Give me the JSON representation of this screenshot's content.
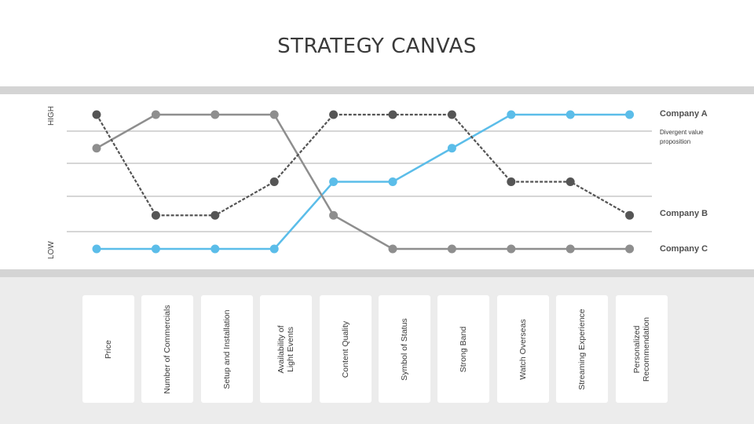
{
  "title": "STRATEGY CANVAS",
  "axis": {
    "high_label": "HIGH",
    "low_label": "LOW"
  },
  "chart_data": {
    "type": "line",
    "title": "STRATEGY CANVAS",
    "categories": [
      "Price",
      "Number of Commercials",
      "Setup and Installation",
      "Availability of\nLight Events",
      "Content Quality",
      "Symbol of Status",
      "Strong Band",
      "Watch Overseas",
      "Streaming Experience",
      "Personalized\nRecommendation"
    ],
    "ylim": [
      0,
      4
    ],
    "y_labels": {
      "high": "HIGH",
      "low": "LOW"
    },
    "grid": true,
    "series": [
      {
        "name": "Company A",
        "color": "#5bbde9",
        "style": "solid",
        "values": [
          0,
          0,
          0,
          0,
          2,
          2,
          3,
          4,
          4,
          4
        ]
      },
      {
        "name": "Company B",
        "color": "#555555",
        "style": "dashed",
        "values": [
          4,
          1,
          1,
          2,
          4,
          4,
          4,
          2,
          2,
          1
        ]
      },
      {
        "name": "Company C",
        "color": "#8e8e8e",
        "style": "solid",
        "values": [
          3,
          4,
          4,
          4,
          1,
          0,
          0,
          0,
          0,
          0
        ]
      }
    ],
    "annotations": [
      "Divergent value proposition"
    ]
  },
  "legend": {
    "company_a": "Company A",
    "company_b": "Company B",
    "company_c": "Company C"
  },
  "annotation": "Divergent value proposition"
}
